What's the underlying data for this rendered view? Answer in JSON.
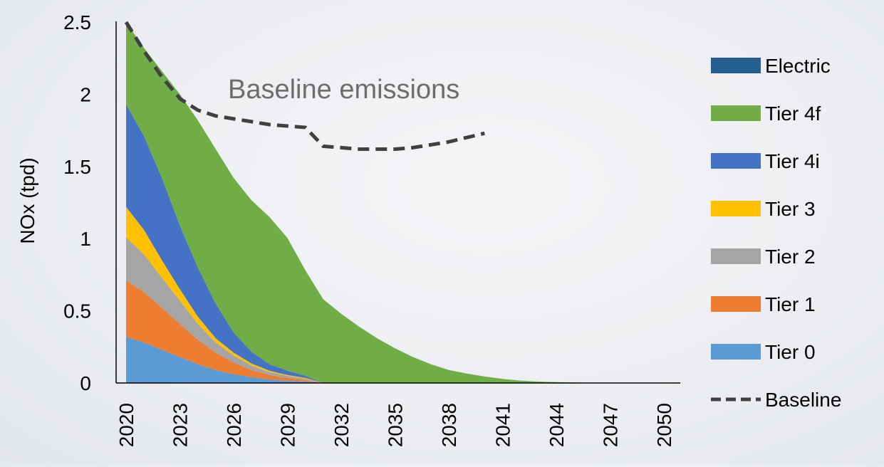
{
  "chart_data": {
    "type": "area",
    "stacked": true,
    "title": "",
    "xlabel": "",
    "ylabel": "NOx (tpd)",
    "xlim": [
      2020,
      2050
    ],
    "ylim": [
      0,
      2.5
    ],
    "y_ticks": [
      "0",
      "0.5",
      "1",
      "1.5",
      "2",
      "2.5"
    ],
    "x_ticks": [
      "2020",
      "2023",
      "2026",
      "2029",
      "2032",
      "2035",
      "2038",
      "2041",
      "2044",
      "2047",
      "2050"
    ],
    "grid": false,
    "legend_position": "right",
    "annotation": "Baseline emissions",
    "x": [
      2020,
      2021,
      2022,
      2023,
      2024,
      2025,
      2026,
      2027,
      2028,
      2029,
      2030,
      2031,
      2032,
      2033,
      2034,
      2035,
      2036,
      2037,
      2038,
      2039,
      2040,
      2041,
      2042,
      2043,
      2044,
      2045,
      2046,
      2047,
      2048,
      2049,
      2050
    ],
    "series": [
      {
        "name": "Tier 0",
        "color": "#5b9bd5",
        "values": [
          0.32,
          0.28,
          0.23,
          0.18,
          0.13,
          0.09,
          0.06,
          0.04,
          0.025,
          0.015,
          0.01,
          0,
          0,
          0,
          0,
          0,
          0,
          0,
          0,
          0,
          0,
          0,
          0,
          0,
          0,
          0,
          0,
          0,
          0,
          0,
          0
        ]
      },
      {
        "name": "Tier 1",
        "color": "#ed7d31",
        "values": [
          0.39,
          0.35,
          0.29,
          0.23,
          0.17,
          0.12,
          0.08,
          0.05,
          0.03,
          0.02,
          0.01,
          0,
          0,
          0,
          0,
          0,
          0,
          0,
          0,
          0,
          0,
          0,
          0,
          0,
          0,
          0,
          0,
          0,
          0,
          0,
          0
        ]
      },
      {
        "name": "Tier 2",
        "color": "#a5a5a5",
        "values": [
          0.3,
          0.26,
          0.21,
          0.16,
          0.11,
          0.07,
          0.05,
          0.03,
          0.02,
          0.015,
          0.01,
          0,
          0,
          0,
          0,
          0,
          0,
          0,
          0,
          0,
          0,
          0,
          0,
          0,
          0,
          0,
          0,
          0,
          0,
          0,
          0
        ]
      },
      {
        "name": "Tier 3",
        "color": "#ffc000",
        "values": [
          0.21,
          0.17,
          0.12,
          0.08,
          0.05,
          0.03,
          0.02,
          0.015,
          0.01,
          0.005,
          0.005,
          0,
          0,
          0,
          0,
          0,
          0,
          0,
          0,
          0,
          0,
          0,
          0,
          0,
          0,
          0,
          0,
          0,
          0,
          0,
          0
        ]
      },
      {
        "name": "Tier 4i",
        "color": "#4472c4",
        "values": [
          0.71,
          0.65,
          0.57,
          0.44,
          0.34,
          0.24,
          0.14,
          0.08,
          0.045,
          0.03,
          0.015,
          0,
          0,
          0,
          0,
          0,
          0,
          0,
          0,
          0,
          0,
          0,
          0,
          0,
          0,
          0,
          0,
          0,
          0,
          0,
          0
        ]
      },
      {
        "name": "Tier 4f",
        "color": "#70ad47",
        "values": [
          0.57,
          0.61,
          0.74,
          0.91,
          1.02,
          1.07,
          1.07,
          1.05,
          1.02,
          0.92,
          0.73,
          0.58,
          0.48,
          0.39,
          0.31,
          0.24,
          0.18,
          0.13,
          0.09,
          0.065,
          0.045,
          0.028,
          0.017,
          0.01,
          0.006,
          0.003,
          0.002,
          0.001,
          0,
          0,
          0
        ]
      },
      {
        "name": "Electric",
        "color": "#255e91",
        "values": [
          0,
          0,
          0,
          0,
          0,
          0,
          0,
          0,
          0,
          0,
          0,
          0,
          0,
          0,
          0,
          0,
          0,
          0,
          0,
          0,
          0,
          0,
          0,
          0,
          0,
          0,
          0,
          0,
          0,
          0,
          0
        ]
      }
    ],
    "baseline": {
      "name": "Baseline",
      "color": "#404040",
      "style": "dashed",
      "x": [
        2020,
        2021,
        2022,
        2023,
        2024,
        2025,
        2026,
        2027,
        2028,
        2029,
        2030,
        2031,
        2032,
        2033,
        2034,
        2035,
        2036,
        2037,
        2038,
        2039,
        2040
      ],
      "values": [
        2.5,
        2.3,
        2.12,
        1.97,
        1.89,
        1.85,
        1.83,
        1.81,
        1.79,
        1.78,
        1.77,
        1.64,
        1.63,
        1.62,
        1.62,
        1.62,
        1.63,
        1.65,
        1.67,
        1.7,
        1.73
      ]
    },
    "legend": [
      "Electric",
      "Tier 4f",
      "Tier 4i",
      "Tier 3",
      "Tier 2",
      "Tier 1",
      "Tier 0",
      "Baseline"
    ]
  }
}
